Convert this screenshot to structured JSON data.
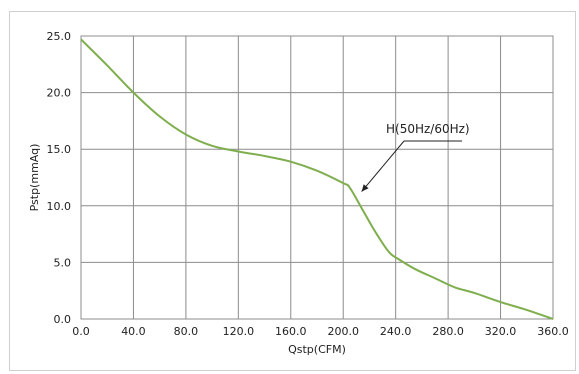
{
  "chart_data": {
    "type": "line",
    "xlabel": "Qstp(CFM)",
    "ylabel": "Pstp(mmAq)",
    "xlim": [
      0,
      360
    ],
    "ylim": [
      0,
      25
    ],
    "grid": true,
    "x_ticks": [
      "0.0",
      "40.0",
      "80.0",
      "120.0",
      "160.0",
      "200.0",
      "240.0",
      "280.0",
      "320.0",
      "360.0"
    ],
    "y_ticks": [
      "0.0",
      "5.0",
      "10.0",
      "15.0",
      "20.0",
      "25.0"
    ],
    "line_color": "#7fae4e",
    "series": [
      {
        "name": "H(50Hz/60Hz)",
        "x": [
          0,
          20,
          40,
          60,
          80,
          100,
          120,
          140,
          160,
          180,
          200,
          205,
          215,
          225,
          235,
          242,
          255,
          270,
          285,
          300,
          320,
          340,
          360
        ],
        "y": [
          24.7,
          22.4,
          20.0,
          17.9,
          16.3,
          15.3,
          14.8,
          14.4,
          13.9,
          13.1,
          12.0,
          11.6,
          9.6,
          7.6,
          5.9,
          5.3,
          4.4,
          3.6,
          2.8,
          2.3,
          1.5,
          0.8,
          0.0
        ]
      }
    ],
    "annotation": {
      "text": "H(50Hz/60Hz)",
      "point": [
        211,
        10.9
      ]
    }
  }
}
